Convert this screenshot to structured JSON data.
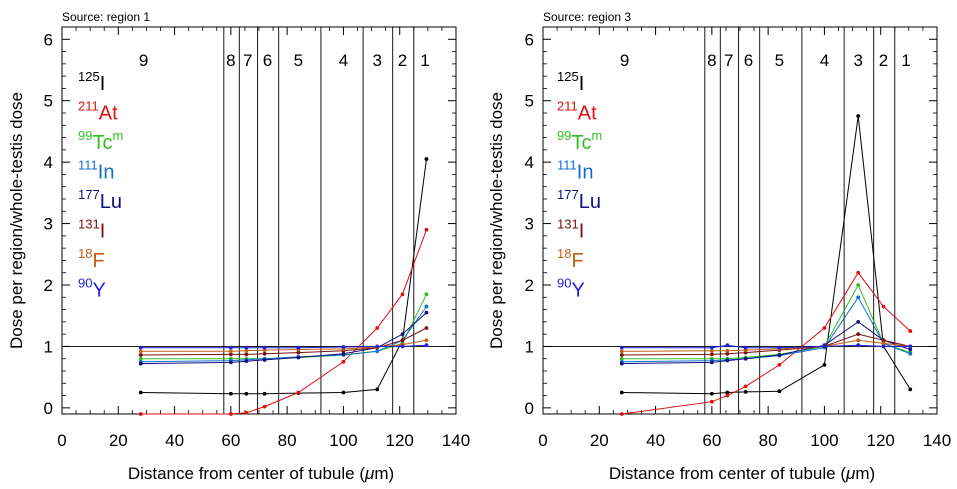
{
  "chart_data": [
    {
      "type": "line",
      "title": "Source: region 1",
      "xlabel": "Distance from center of tubule (μm)",
      "xlabel_pre": "Distance from center of tubule (",
      "xlabel_mu": "μ",
      "xlabel_post": "m)",
      "ylabel": "Dose per region/whole-testis dose",
      "xlim": [
        0,
        140
      ],
      "ylim": [
        -0.1,
        6.2
      ],
      "xticks": [
        0,
        20,
        40,
        60,
        80,
        100,
        120,
        140
      ],
      "yticks": [
        0,
        1,
        2,
        3,
        4,
        5,
        6
      ],
      "reference_line_y": 1,
      "region_boundaries": [
        57.5,
        63,
        69.5,
        77,
        92,
        107,
        117.5,
        125
      ],
      "regions": [
        {
          "label": "9",
          "x": 29
        },
        {
          "label": "8",
          "x": 60
        },
        {
          "label": "7",
          "x": 66
        },
        {
          "label": "6",
          "x": 73
        },
        {
          "label": "5",
          "x": 84
        },
        {
          "label": "4",
          "x": 100
        },
        {
          "label": "3",
          "x": 112
        },
        {
          "label": "2",
          "x": 121
        },
        {
          "label": "1",
          "x": 129
        }
      ],
      "x": [
        28,
        60,
        65.5,
        72,
        84,
        100,
        112,
        121,
        129.5
      ],
      "series": [
        {
          "name": "I",
          "mass": "125",
          "meta": "",
          "color": "#000000",
          "values": [
            0.25,
            0.23,
            0.23,
            0.23,
            0.24,
            0.25,
            0.3,
            1.1,
            4.05
          ]
        },
        {
          "name": "At",
          "mass": "211",
          "meta": "",
          "color": "#e01010",
          "values": [
            -0.1,
            -0.1,
            -0.08,
            0.02,
            0.25,
            0.75,
            1.3,
            1.85,
            2.9
          ]
        },
        {
          "name": "Tc",
          "mass": "99",
          "meta": "m",
          "color": "#30c020",
          "values": [
            0.8,
            0.8,
            0.8,
            0.8,
            0.82,
            0.86,
            0.92,
            1.05,
            1.85
          ]
        },
        {
          "name": "In",
          "mass": "111",
          "meta": "",
          "color": "#1070d0",
          "values": [
            0.75,
            0.77,
            0.78,
            0.8,
            0.83,
            0.86,
            0.92,
            1.1,
            1.65
          ]
        },
        {
          "name": "Lu",
          "mass": "177",
          "meta": "",
          "color": "#101080",
          "values": [
            0.72,
            0.74,
            0.76,
            0.78,
            0.82,
            0.88,
            0.98,
            1.2,
            1.55
          ]
        },
        {
          "name": "I",
          "mass": "131",
          "meta": "",
          "color": "#7a1010",
          "values": [
            0.86,
            0.87,
            0.87,
            0.88,
            0.9,
            0.93,
            0.98,
            1.1,
            1.3
          ]
        },
        {
          "name": "F",
          "mass": "18",
          "meta": "",
          "color": "#c06010",
          "values": [
            0.92,
            0.92,
            0.93,
            0.94,
            0.95,
            0.96,
            0.99,
            1.03,
            1.1
          ]
        },
        {
          "name": "Y",
          "mass": "90",
          "meta": "",
          "color": "#2020e0",
          "values": [
            0.98,
            0.98,
            0.98,
            0.98,
            0.98,
            0.99,
            1.0,
            1.0,
            1.02
          ]
        }
      ]
    },
    {
      "type": "line",
      "title": "Source: region 3",
      "xlabel": "Distance from center of tubule (μm)",
      "xlabel_pre": "Distance from center of tubule (",
      "xlabel_mu": "μ",
      "xlabel_post": "m)",
      "ylabel": "Dose per region/whole-testis dose",
      "xlim": [
        0,
        140
      ],
      "ylim": [
        -0.1,
        6.2
      ],
      "xticks": [
        0,
        20,
        40,
        60,
        80,
        100,
        120,
        140
      ],
      "yticks": [
        0,
        1,
        2,
        3,
        4,
        5,
        6
      ],
      "reference_line_y": 1,
      "region_boundaries": [
        57.5,
        63,
        69.5,
        77,
        92,
        107,
        117.5,
        125
      ],
      "regions": [
        {
          "label": "9",
          "x": 29
        },
        {
          "label": "8",
          "x": 60
        },
        {
          "label": "7",
          "x": 66
        },
        {
          "label": "6",
          "x": 73
        },
        {
          "label": "5",
          "x": 84
        },
        {
          "label": "4",
          "x": 100
        },
        {
          "label": "3",
          "x": 112
        },
        {
          "label": "2",
          "x": 121
        },
        {
          "label": "1",
          "x": 129
        }
      ],
      "x": [
        28,
        60,
        65.5,
        72,
        84,
        100,
        112,
        121,
        130.5
      ],
      "series": [
        {
          "name": "I",
          "mass": "125",
          "meta": "",
          "color": "#000000",
          "values": [
            0.25,
            0.23,
            0.25,
            0.26,
            0.27,
            0.7,
            4.75,
            1.0,
            0.3
          ]
        },
        {
          "name": "At",
          "mass": "211",
          "meta": "",
          "color": "#e01010",
          "values": [
            -0.1,
            0.1,
            0.2,
            0.35,
            0.7,
            1.3,
            2.2,
            1.65,
            1.25
          ]
        },
        {
          "name": "Tc",
          "mass": "99",
          "meta": "m",
          "color": "#30c020",
          "values": [
            0.8,
            0.8,
            0.8,
            0.82,
            0.87,
            1.0,
            2.0,
            1.05,
            0.9
          ]
        },
        {
          "name": "In",
          "mass": "111",
          "meta": "",
          "color": "#1070d0",
          "values": [
            0.75,
            0.77,
            0.78,
            0.8,
            0.85,
            0.98,
            1.8,
            1.05,
            0.88
          ]
        },
        {
          "name": "Lu",
          "mass": "177",
          "meta": "",
          "color": "#101080",
          "values": [
            0.72,
            0.74,
            0.77,
            0.8,
            0.86,
            1.02,
            1.4,
            1.1,
            0.95
          ]
        },
        {
          "name": "I",
          "mass": "131",
          "meta": "",
          "color": "#7a1010",
          "values": [
            0.86,
            0.87,
            0.88,
            0.9,
            0.94,
            1.0,
            1.2,
            1.1,
            1.0
          ]
        },
        {
          "name": "F",
          "mass": "18",
          "meta": "",
          "color": "#c06010",
          "values": [
            0.92,
            0.93,
            0.93,
            0.94,
            0.96,
            1.0,
            1.1,
            1.05,
            1.0
          ]
        },
        {
          "name": "Y",
          "mass": "90",
          "meta": "",
          "color": "#2020e0",
          "values": [
            0.98,
            0.98,
            1.02,
            0.98,
            0.98,
            1.0,
            1.02,
            1.0,
            1.0
          ]
        }
      ]
    }
  ]
}
